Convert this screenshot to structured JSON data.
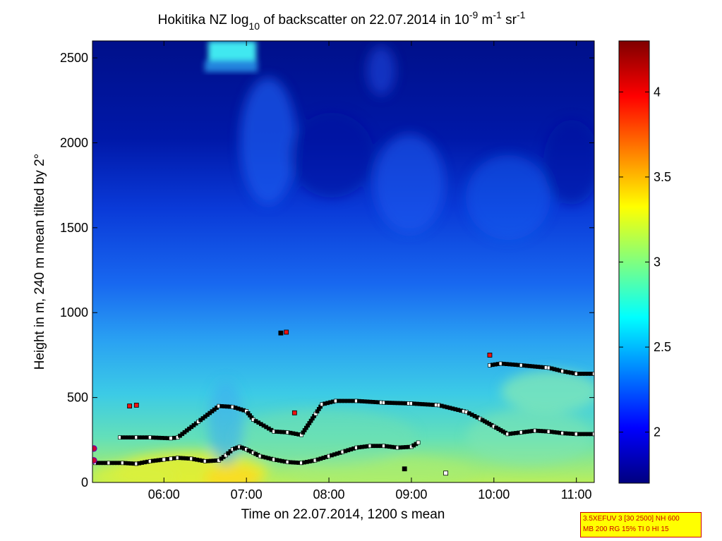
{
  "chart_data": {
    "type": "heatmap",
    "title_parts": {
      "main": "Hokitika NZ log",
      "sub": "10",
      "mid": " of backscatter on 22.07.2014 in 10",
      "sup1": "-9",
      "unit1": " m",
      "sup2": "-1",
      "unit2": " sr",
      "sup3": "-1"
    },
    "xlabel": "Time on 22.07.2014, 1200 s mean",
    "ylabel": "Height in m, 240 m mean tilted by 2°",
    "xlim": [
      "05:08",
      "11:13"
    ],
    "ylim": [
      0,
      2600
    ],
    "x_ticks": [
      "06:00",
      "07:00",
      "08:00",
      "09:00",
      "10:00",
      "11:00"
    ],
    "y_ticks": [
      0,
      500,
      1000,
      1500,
      2000,
      2500
    ],
    "colorbar": {
      "range": [
        1.7,
        4.3
      ],
      "ticks": [
        2,
        2.5,
        3,
        3.5,
        4
      ],
      "colormap": "jet"
    },
    "series": [
      {
        "kind": "lowest layer",
        "points": [
          [
            "05:10",
            115
          ],
          [
            "05:20",
            115
          ],
          [
            "05:30",
            115
          ],
          [
            "05:40",
            110
          ],
          [
            "05:50",
            125
          ],
          [
            "06:00",
            135
          ],
          [
            "06:05",
            140
          ],
          [
            "06:10",
            145
          ],
          [
            "06:20",
            140
          ],
          [
            "06:30",
            125
          ],
          [
            "06:40",
            130
          ],
          [
            "06:45",
            160
          ],
          [
            "06:50",
            195
          ],
          [
            "06:55",
            210
          ],
          [
            "07:00",
            195
          ],
          [
            "07:05",
            175
          ],
          [
            "07:10",
            155
          ],
          [
            "07:20",
            135
          ],
          [
            "07:30",
            120
          ],
          [
            "07:40",
            115
          ],
          [
            "07:50",
            130
          ],
          [
            "08:00",
            155
          ],
          [
            "08:10",
            180
          ],
          [
            "08:20",
            205
          ],
          [
            "08:30",
            215
          ],
          [
            "08:40",
            215
          ],
          [
            "08:50",
            205
          ],
          [
            "09:00",
            210
          ],
          [
            "09:05",
            235
          ]
        ]
      },
      {
        "kind": "second layer",
        "points": [
          [
            "05:28",
            265
          ],
          [
            "05:40",
            265
          ],
          [
            "05:50",
            265
          ],
          [
            "06:05",
            260
          ],
          [
            "06:10",
            265
          ],
          [
            "06:40",
            450
          ],
          [
            "06:50",
            445
          ],
          [
            "07:00",
            420
          ],
          [
            "07:05",
            370
          ],
          [
            "07:20",
            300
          ],
          [
            "07:30",
            295
          ],
          [
            "07:40",
            280
          ],
          [
            "07:55",
            460
          ],
          [
            "08:05",
            480
          ],
          [
            "08:20",
            480
          ],
          [
            "08:40",
            470
          ],
          [
            "09:00",
            465
          ],
          [
            "09:20",
            455
          ],
          [
            "09:40",
            415
          ],
          [
            "09:50",
            375
          ],
          [
            "10:00",
            330
          ],
          [
            "10:10",
            285
          ],
          [
            "10:20",
            295
          ],
          [
            "10:30",
            305
          ],
          [
            "10:40",
            300
          ],
          [
            "10:50",
            290
          ],
          [
            "11:00",
            285
          ],
          [
            "11:13",
            285
          ]
        ]
      },
      {
        "kind": "upper layer",
        "points": [
          [
            "09:57",
            690
          ],
          [
            "10:05",
            700
          ],
          [
            "10:20",
            690
          ],
          [
            "10:40",
            675
          ],
          [
            "10:50",
            655
          ],
          [
            "11:00",
            640
          ],
          [
            "11:13",
            640
          ]
        ]
      }
    ],
    "markers": [
      {
        "kind": "red",
        "x": "05:35",
        "y": 450
      },
      {
        "kind": "red",
        "x": "05:40",
        "y": 455
      },
      {
        "kind": "red",
        "x": "07:29",
        "y": 885
      },
      {
        "kind": "red",
        "x": "07:35",
        "y": 410
      },
      {
        "kind": "red",
        "x": "09:57",
        "y": 750
      },
      {
        "kind": "black",
        "x": "07:25",
        "y": 880
      },
      {
        "kind": "black",
        "x": "08:55",
        "y": 80
      },
      {
        "kind": "white",
        "x": "09:25",
        "y": 55
      },
      {
        "kind": "magenta",
        "x": "05:08",
        "y": 200
      },
      {
        "kind": "magenta",
        "x": "05:08",
        "y": 130
      }
    ]
  },
  "infobox": {
    "line1": "3.5XEFUV 3 [30 2500] NH 600",
    "line2": "MB 200 RG 15% TI 0 HI 15"
  }
}
